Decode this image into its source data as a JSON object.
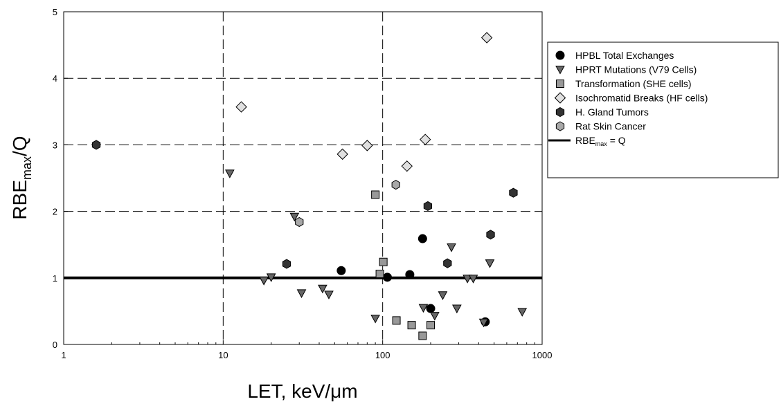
{
  "chart_data": {
    "type": "scatter",
    "title": "",
    "xlabel": "LET, keV/μm",
    "ylabel_main": "RBE",
    "ylabel_sub": "max",
    "ylabel_tail": "/Q",
    "xscale": "log",
    "xlim": [
      1,
      1000
    ],
    "ylim": [
      0,
      5
    ],
    "xticks": [
      {
        "value": 1,
        "label": "1"
      },
      {
        "value": 10,
        "label": "10"
      },
      {
        "value": 100,
        "label": "100"
      },
      {
        "value": 1000,
        "label": "1000"
      }
    ],
    "yticks": [
      {
        "value": 0,
        "label": "0"
      },
      {
        "value": 1,
        "label": "1"
      },
      {
        "value": 2,
        "label": "2"
      },
      {
        "value": 3,
        "label": "3"
      },
      {
        "value": 4,
        "label": "4"
      },
      {
        "value": 5,
        "label": "5"
      }
    ],
    "grid": "dashed",
    "legend_position": "right",
    "series": [
      {
        "name": "HPBL Total Exchanges",
        "marker": "circle",
        "color": "#000000",
        "points": [
          [
            55,
            1.11
          ],
          [
            107,
            1.01
          ],
          [
            148,
            1.05
          ],
          [
            178,
            1.59
          ],
          [
            200,
            0.54
          ],
          [
            440,
            0.34
          ]
        ]
      },
      {
        "name": "HPRT Mutations (V79 Cells)",
        "marker": "triangle-down",
        "color": "#666666",
        "points": [
          [
            11,
            2.57
          ],
          [
            18,
            0.96
          ],
          [
            20,
            1.01
          ],
          [
            28,
            1.92
          ],
          [
            31,
            0.77
          ],
          [
            42,
            0.84
          ],
          [
            46,
            0.75
          ],
          [
            90,
            0.39
          ],
          [
            180,
            0.55
          ],
          [
            212,
            0.43
          ],
          [
            238,
            0.74
          ],
          [
            270,
            1.46
          ],
          [
            292,
            0.54
          ],
          [
            340,
            0.99
          ],
          [
            370,
            0.99
          ],
          [
            430,
            0.33
          ],
          [
            470,
            1.22
          ],
          [
            750,
            0.49
          ]
        ]
      },
      {
        "name": "Transformation (SHE cells)",
        "marker": "square",
        "color": "#999999",
        "points": [
          [
            90,
            2.25
          ],
          [
            96,
            1.06
          ],
          [
            101,
            1.24
          ],
          [
            122,
            0.36
          ],
          [
            152,
            0.29
          ],
          [
            178,
            0.13
          ],
          [
            200,
            0.29
          ]
        ]
      },
      {
        "name": "Isochromatid Breaks (HF cells)",
        "marker": "diamond",
        "color": "#e0e0e0",
        "points": [
          [
            13,
            3.57
          ],
          [
            56,
            2.86
          ],
          [
            80,
            2.99
          ],
          [
            142,
            2.68
          ],
          [
            185,
            3.08
          ],
          [
            450,
            4.61
          ]
        ]
      },
      {
        "name": "H. Gland Tumors",
        "marker": "hexagon",
        "color": "#333333",
        "points": [
          [
            1.6,
            3.0
          ],
          [
            25,
            1.21
          ],
          [
            192,
            2.08
          ],
          [
            255,
            1.22
          ],
          [
            475,
            1.65
          ],
          [
            660,
            2.28
          ]
        ]
      },
      {
        "name": "Rat Skin Cancer",
        "marker": "hexagon",
        "color": "#a8a8a8",
        "points": [
          [
            30,
            1.84
          ],
          [
            121,
            2.4
          ]
        ]
      }
    ],
    "reference_line": {
      "label_main": "RBE",
      "label_sub": "max",
      "label_tail": " = Q",
      "y": 1
    }
  }
}
